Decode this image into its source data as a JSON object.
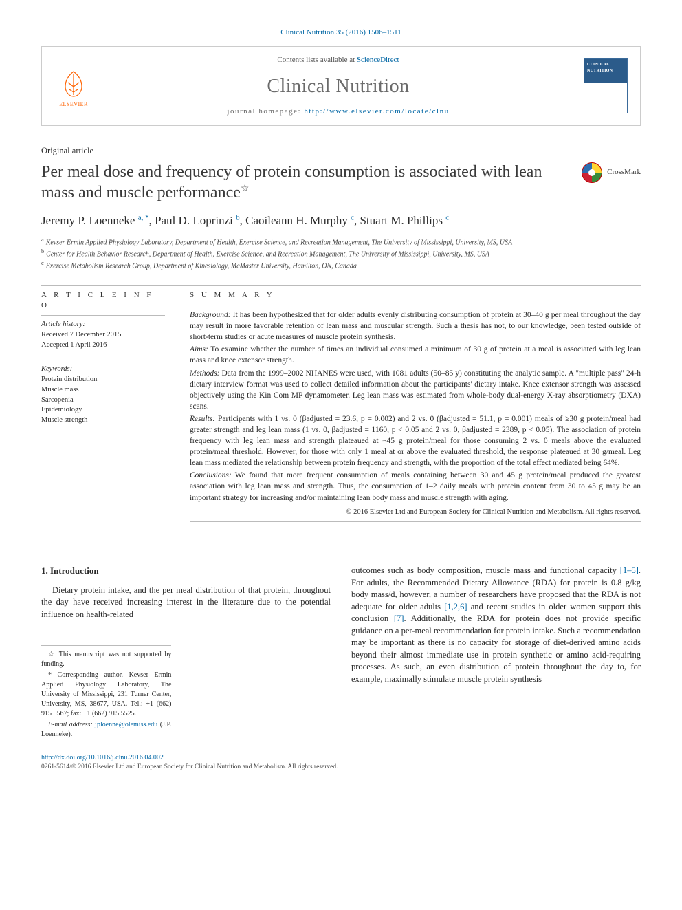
{
  "topbar": "Clinical Nutrition 35 (2016) 1506–1511",
  "header": {
    "contents_prefix": "Contents lists available at ",
    "contents_link": "ScienceDirect",
    "journal_name": "Clinical Nutrition",
    "homepage_prefix": "journal homepage: ",
    "homepage_url": "http://www.elsevier.com/locate/clnu",
    "elsevier_label": "ELSEVIER",
    "cover_title": "CLINICAL NUTRITION"
  },
  "article_type": "Original article",
  "title": "Per meal dose and frequency of protein consumption is associated with lean mass and muscle performance",
  "title_star": "☆",
  "crossmark_label": "CrossMark",
  "authors_html": "Jeremy P. Loenneke <sup>a, *</sup>, Paul D. Loprinzi <sup>b</sup>, Caoileann H. Murphy <sup>c</sup>, Stuart M. Phillips <sup>c</sup>",
  "affiliations": [
    {
      "sup": "a",
      "text": "Kevser Ermin Applied Physiology Laboratory, Department of Health, Exercise Science, and Recreation Management, The University of Mississippi, University, MS, USA"
    },
    {
      "sup": "b",
      "text": "Center for Health Behavior Research, Department of Health, Exercise Science, and Recreation Management, The University of Mississippi, University, MS, USA"
    },
    {
      "sup": "c",
      "text": "Exercise Metabolism Research Group, Department of Kinesiology, McMaster University, Hamilton, ON, Canada"
    }
  ],
  "article_info": {
    "head": "A R T I C L E  I N F O",
    "history_label": "Article history:",
    "received": "Received 7 December 2015",
    "accepted": "Accepted 1 April 2016",
    "keywords_label": "Keywords:",
    "keywords": [
      "Protein distribution",
      "Muscle mass",
      "Sarcopenia",
      "Epidemiology",
      "Muscle strength"
    ]
  },
  "summary": {
    "head": "S U M M A R Y",
    "background_label": "Background:",
    "background": " It has been hypothesized that for older adults evenly distributing consumption of protein at 30–40 g per meal throughout the day may result in more favorable retention of lean mass and muscular strength. Such a thesis has not, to our knowledge, been tested outside of short-term studies or acute measures of muscle protein synthesis.",
    "aims_label": "Aims:",
    "aims": " To examine whether the number of times an individual consumed a minimum of 30 g of protein at a meal is associated with leg lean mass and knee extensor strength.",
    "methods_label": "Methods:",
    "methods": " Data from the 1999–2002 NHANES were used, with 1081 adults (50–85 y) constituting the analytic sample. A \"multiple pass\" 24-h dietary interview format was used to collect detailed information about the participants' dietary intake. Knee extensor strength was assessed objectively using the Kin Com MP dynamometer. Leg lean mass was estimated from whole-body dual-energy X-ray absorptiometry (DXA) scans.",
    "results_label": "Results:",
    "results": " Participants with 1 vs. 0 (βadjusted = 23.6, p = 0.002) and 2 vs. 0 (βadjusted = 51.1, p = 0.001) meals of ≥30 g protein/meal had greater strength and leg lean mass (1 vs. 0, βadjusted = 1160, p < 0.05 and 2 vs. 0, βadjusted = 2389, p < 0.05). The association of protein frequency with leg lean mass and strength plateaued at ~45 g protein/meal for those consuming 2 vs. 0 meals above the evaluated protein/meal threshold. However, for those with only 1 meal at or above the evaluated threshold, the response plateaued at 30 g/meal. Leg lean mass mediated the relationship between protein frequency and strength, with the proportion of the total effect mediated being 64%.",
    "conclusions_label": "Conclusions:",
    "conclusions": " We found that more frequent consumption of meals containing between 30 and 45 g protein/meal produced the greatest association with leg lean mass and strength. Thus, the consumption of 1–2 daily meals with protein content from 30 to 45 g may be an important strategy for increasing and/or maintaining lean body mass and muscle strength with aging.",
    "copyright": "© 2016 Elsevier Ltd and European Society for Clinical Nutrition and Metabolism. All rights reserved."
  },
  "body": {
    "intro_head": "1.  Introduction",
    "col1_p1": "Dietary protein intake, and the per meal distribution of that protein, throughout the day have received increasing interest in the literature due to the potential influence on health-related",
    "col2_p1_a": "outcomes such as body composition, muscle mass and functional capacity ",
    "col2_ref1": "[1–5]",
    "col2_p1_b": ". For adults, the Recommended Dietary Allowance (RDA) for protein is 0.8 g/kg body mass/d, however, a number of researchers have proposed that the RDA is not adequate for older adults ",
    "col2_ref2": "[1,2,6]",
    "col2_p1_c": " and recent studies in older women support this conclusion ",
    "col2_ref3": "[7]",
    "col2_p1_d": ". Additionally, the RDA for protein does not provide specific guidance on a per-meal recommendation for protein intake. Such a recommendation may be important as there is no capacity for storage of diet-derived amino acids beyond their almost immediate use in protein synthetic or amino acid-requiring processes. As such, an even distribution of protein throughout the day to, for example, maximally stimulate muscle protein synthesis"
  },
  "footnotes": {
    "funding": "☆ This manuscript was not supported by funding.",
    "corresponding": "* Corresponding author. Kevser Ermin Applied Physiology Laboratory, The University of Mississippi, 231 Turner Center, University, MS, 38677, USA. Tel.: +1 (662) 915 5567; fax: +1 (662) 915 5525.",
    "email_label": "E-mail address: ",
    "email": "jploenne@olemiss.edu",
    "email_who": " (J.P. Loenneke)."
  },
  "footer": {
    "doi": "http://dx.doi.org/10.1016/j.clnu.2016.04.002",
    "issn_cpr": "0261-5614/© 2016 Elsevier Ltd and European Society for Clinical Nutrition and Metabolism. All rights reserved."
  },
  "colors": {
    "link": "#0066a4",
    "elsevier_orange": "#ff6200",
    "rule": "#bbbbbb",
    "cover_blue": "#2b5b8a"
  }
}
